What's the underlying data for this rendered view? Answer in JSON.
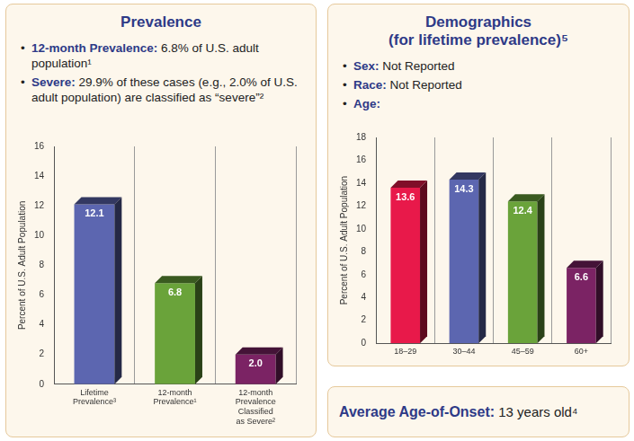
{
  "prevalence_panel": {
    "title": [
      "Prevalence"
    ],
    "bullets": [
      {
        "label": "12-month Prevalence:",
        "text": " 6.8% of U.S. adult population¹"
      },
      {
        "label": "Severe:",
        "text": " 29.9% of these cases (e.g., 2.0% of U.S. adult population) are classified as “severe”²"
      }
    ]
  },
  "demographics_panel": {
    "title": [
      "Demographics",
      "(for lifetime prevalence)⁵"
    ],
    "bullets": [
      {
        "label": "Sex:",
        "text": " Not Reported"
      },
      {
        "label": "Race:",
        "text": " Not Reported"
      },
      {
        "label": "Age:",
        "text": ""
      }
    ]
  },
  "onset_panel": {
    "label": "Average Age-of-Onset:",
    "text": " 13 years old⁴"
  },
  "chart_data": [
    {
      "type": "bar",
      "categories": [
        [
          "Lifetime",
          "Prevalence³"
        ],
        [
          "12-month",
          "Prevalence¹"
        ],
        [
          "12-month",
          "Prevalence",
          "Classified",
          "as Severe²"
        ]
      ],
      "values": [
        12.1,
        6.8,
        2.0
      ],
      "value_labels": [
        "12.1",
        "6.8",
        "2.0"
      ],
      "colors": [
        "#5c66b0",
        "#6aa33a",
        "#7b2364"
      ],
      "y_label": "Percent of U.S. Adult Population",
      "ylim": [
        0,
        16
      ],
      "yticks": [
        0,
        2,
        4,
        6,
        8,
        10,
        12,
        14,
        16
      ],
      "grid": false,
      "data_labels": true
    },
    {
      "type": "bar",
      "categories": [
        "18–29",
        "30–44",
        "45–59",
        "60+"
      ],
      "values": [
        13.6,
        14.3,
        12.4,
        6.6
      ],
      "colors": [
        "#e8194a",
        "#5c66b0",
        "#6aa33a",
        "#7b2364"
      ],
      "y_label": "Percent of U.S. Adult Population",
      "ylim": [
        0,
        18
      ],
      "yticks": [
        0,
        2,
        4,
        6,
        8,
        10,
        12,
        14,
        16,
        18
      ],
      "grid": false,
      "data_labels": true
    }
  ]
}
